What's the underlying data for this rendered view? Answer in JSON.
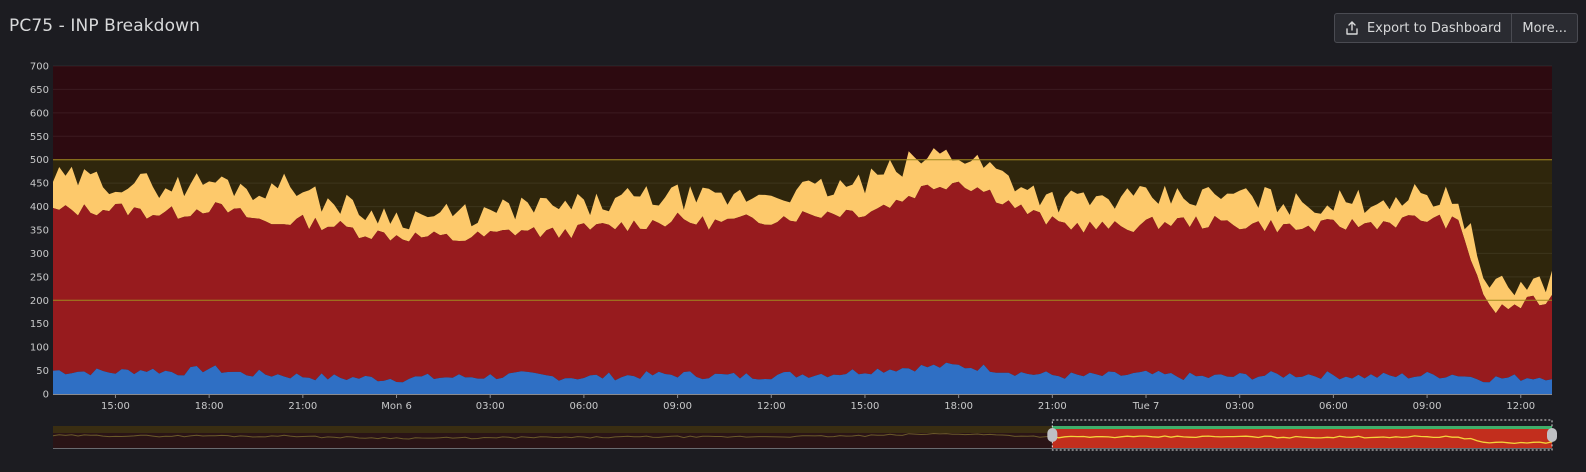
{
  "panel": {
    "title": "PC75 - INP Breakdown"
  },
  "toolbar": {
    "export_label": "Export to Dashboard",
    "more_label": "More..."
  },
  "icons": {
    "export": "export-icon"
  },
  "colors": {
    "background": "#1c1c21",
    "poor_zone": "#2d0a10",
    "needs_improvement_zone": "#2f260c",
    "good_zone": "#1e1c21",
    "threshold_line": "#a08a1e",
    "series_top": "#fdc96b",
    "series_middle": "#971b1e",
    "series_bottom": "#2f6fc4",
    "navigator_window": "#c22e1d"
  },
  "chart_data": {
    "type": "area",
    "stacked": true,
    "ylim": [
      0,
      700
    ],
    "yticks": [
      0,
      50,
      100,
      150,
      200,
      250,
      300,
      350,
      400,
      450,
      500,
      550,
      600,
      650,
      700
    ],
    "x_labels": [
      "15:00",
      "18:00",
      "21:00",
      "Mon 6",
      "03:00",
      "06:00",
      "09:00",
      "12:00",
      "15:00",
      "18:00",
      "21:00",
      "Tue 7",
      "03:00",
      "06:00",
      "09:00",
      "12:00"
    ],
    "x_hours": [
      15,
      18,
      21,
      24,
      27,
      30,
      33,
      36,
      39,
      42,
      45,
      48,
      51,
      54,
      57,
      60
    ],
    "x_range_hours": [
      13,
      61
    ],
    "thresholds": [
      200,
      500
    ],
    "bands": [
      {
        "from": 0,
        "to": 200,
        "level": "good"
      },
      {
        "from": 200,
        "to": 500,
        "level": "needs-improvement"
      },
      {
        "from": 500,
        "to": 700,
        "level": "poor"
      }
    ],
    "grid": true,
    "navigator": {
      "selected_range_hours": [
        45,
        61
      ]
    },
    "series": [
      {
        "x": [
          13.0,
          14.0,
          15.0,
          16.0,
          17.0,
          18.0,
          19.0,
          20.0,
          20.5,
          21.0,
          22.0,
          23.0,
          24.0,
          25.0,
          26.0,
          27.0,
          28.0,
          29.0,
          30.0,
          31.0,
          32.0,
          33.0,
          34.0,
          35.0,
          36.0,
          37.0,
          38.0,
          39.0,
          40.0,
          41.0,
          42.0,
          43.0,
          44.0,
          45.0,
          46.0,
          47.0,
          48.0,
          49.0,
          50.0,
          51.0,
          52.0,
          53.0,
          54.0,
          55.0,
          56.0,
          57.0,
          58.0,
          58.5,
          59.0,
          60.0,
          61.0
        ],
        "values": [
          50,
          48,
          47,
          52,
          46,
          55,
          44,
          42,
          40,
          38,
          35,
          34,
          33,
          35,
          36,
          38,
          40,
          37,
          36,
          38,
          40,
          42,
          40,
          38,
          40,
          42,
          44,
          50,
          55,
          58,
          60,
          55,
          45,
          40,
          38,
          40,
          42,
          38,
          36,
          38,
          40,
          42,
          40,
          38,
          38,
          40,
          42,
          35,
          33,
          35,
          38
        ]
      },
      {
        "x": [
          13.0,
          14.0,
          15.0,
          16.0,
          17.0,
          18.0,
          19.0,
          20.0,
          20.5,
          21.0,
          22.0,
          23.0,
          24.0,
          25.0,
          26.0,
          27.0,
          28.0,
          29.0,
          30.0,
          31.0,
          32.0,
          33.0,
          34.0,
          35.0,
          36.0,
          37.0,
          38.0,
          39.0,
          40.0,
          41.0,
          42.0,
          43.0,
          44.0,
          45.0,
          46.0,
          47.0,
          48.0,
          49.0,
          50.0,
          51.0,
          52.0,
          53.0,
          54.0,
          55.0,
          56.0,
          57.0,
          58.0,
          58.5,
          59.0,
          60.0,
          61.0
        ],
        "values": [
          340,
          345,
          350,
          335,
          340,
          345,
          340,
          320,
          330,
          330,
          325,
          310,
          305,
          300,
          295,
          300,
          310,
          305,
          315,
          320,
          325,
          330,
          325,
          330,
          335,
          340,
          345,
          340,
          355,
          385,
          395,
          375,
          350,
          325,
          320,
          315,
          320,
          330,
          330,
          325,
          320,
          310,
          320,
          325,
          330,
          335,
          320,
          240,
          145,
          155,
          165
        ]
      },
      {
        "x": [
          13.0,
          14.0,
          15.0,
          16.0,
          17.0,
          18.0,
          19.0,
          20.0,
          20.5,
          21.0,
          22.0,
          23.0,
          24.0,
          25.0,
          26.0,
          27.0,
          28.0,
          29.0,
          30.0,
          31.0,
          32.0,
          33.0,
          34.0,
          35.0,
          36.0,
          37.0,
          38.0,
          39.0,
          40.0,
          41.0,
          42.0,
          43.0,
          44.0,
          45.0,
          46.0,
          47.0,
          48.0,
          49.0,
          50.0,
          51.0,
          52.0,
          53.0,
          54.0,
          55.0,
          56.0,
          57.0,
          58.0,
          58.5,
          59.0,
          60.0,
          61.0
        ],
        "values": [
          70,
          65,
          55,
          60,
          58,
          55,
          60,
          65,
          110,
          55,
          50,
          45,
          40,
          45,
          50,
          45,
          50,
          55,
          50,
          52,
          55,
          50,
          48,
          52,
          55,
          52,
          50,
          60,
          70,
          65,
          60,
          55,
          55,
          50,
          55,
          60,
          55,
          52,
          55,
          60,
          55,
          50,
          48,
          50,
          52,
          50,
          55,
          45,
          45,
          40,
          42
        ]
      }
    ]
  }
}
